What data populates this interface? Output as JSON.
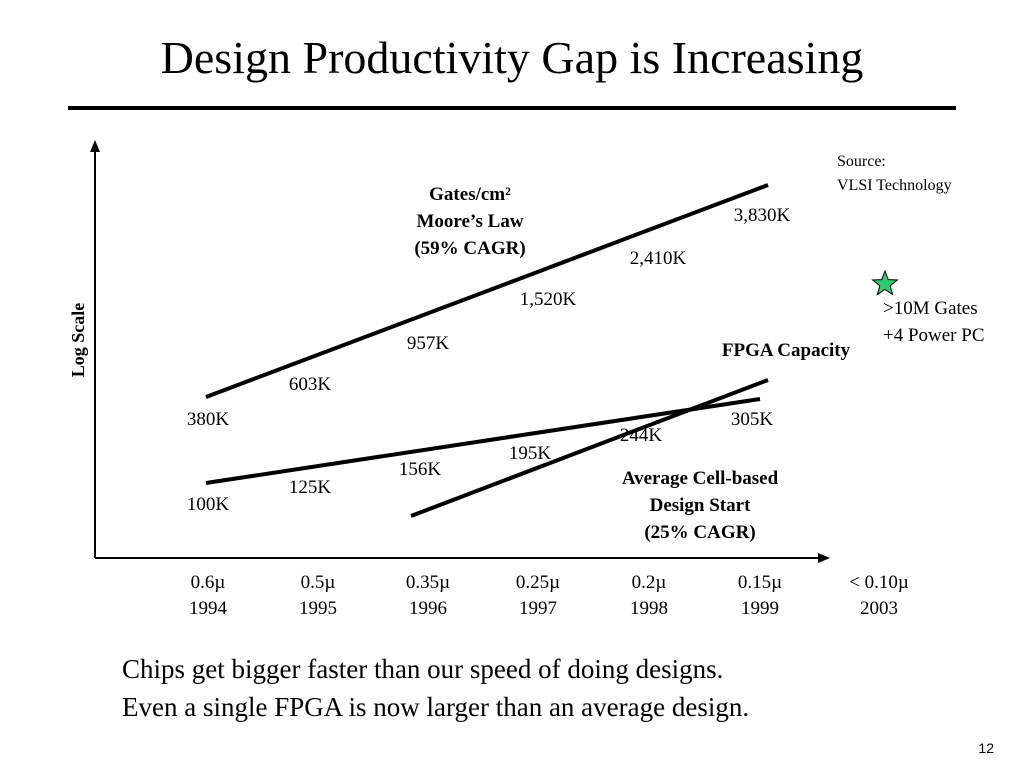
{
  "slide": {
    "title": "Design Productivity Gap is Increasing",
    "caption_lines": [
      "Chips get bigger faster than our speed of doing designs.",
      "Even a single FPGA is now larger than an average design."
    ],
    "page_number": "12"
  },
  "chart_data": {
    "type": "line",
    "ylabel": "Log Scale",
    "y_scale": "log",
    "categories": [
      {
        "process": "0.6µ",
        "year": "1994"
      },
      {
        "process": "0.5µ",
        "year": "1995"
      },
      {
        "process": "0.35µ",
        "year": "1996"
      },
      {
        "process": "0.25µ",
        "year": "1997"
      },
      {
        "process": "0.2µ",
        "year": "1998"
      },
      {
        "process": "0.15µ",
        "year": "1999"
      },
      {
        "process": "< 0.10µ",
        "year": "2003"
      }
    ],
    "series": [
      {
        "id": "moores-law",
        "label_lines": [
          "Gates/cm²",
          "Moore’s Law",
          "(59% CAGR)"
        ],
        "x": [
          "1994",
          "1995",
          "1996",
          "1997",
          "1998",
          "1999"
        ],
        "values": [
          380,
          603,
          957,
          1520,
          2410,
          3830
        ],
        "point_labels": [
          "380K",
          "603K",
          "957K",
          "1,520K",
          "2,410K",
          "3,830K"
        ]
      },
      {
        "id": "average-cell-based",
        "label_lines": [
          "Average Cell-based",
          "Design Start",
          "(25% CAGR)"
        ],
        "x": [
          "1994",
          "1995",
          "1996",
          "1997",
          "1998",
          "1999"
        ],
        "values": [
          100,
          125,
          156,
          195,
          244,
          305
        ],
        "point_labels": [
          "100K",
          "125K",
          "156K",
          "195K",
          "244K",
          "305K"
        ]
      },
      {
        "id": "fpga-capacity",
        "label_lines": [
          "FPGA Capacity"
        ],
        "x": [
          "1996",
          "1999"
        ],
        "values": [
          null,
          null
        ],
        "point_labels": []
      }
    ],
    "annotations": {
      "source_lines": [
        "Source:",
        "VLSI Technology"
      ],
      "fpga_2003_lines": [
        ">10M Gates",
        "+4 Power PC"
      ],
      "star_color": "#2ecc71"
    },
    "grid": false,
    "legend": "none"
  }
}
